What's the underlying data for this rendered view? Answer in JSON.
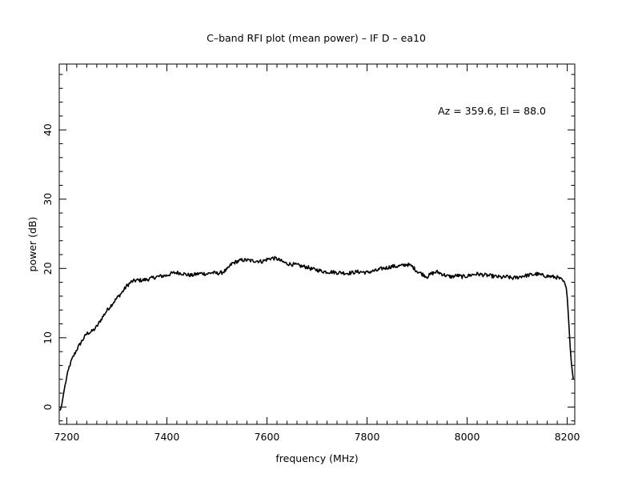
{
  "chart_data": {
    "type": "line",
    "title": "C–band RFI plot (mean power) – IF D – ea10",
    "xlabel": "frequency (MHz)",
    "ylabel": "power (dB)",
    "annotation": "Az = 359.6, El = 88.0",
    "xlim": [
      7185,
      8215
    ],
    "ylim": [
      -2.5,
      49.5
    ],
    "x_ticks": [
      7200,
      7400,
      7600,
      7800,
      8000,
      8200
    ],
    "y_ticks": [
      0,
      10,
      20,
      30,
      40
    ],
    "x_minor_step": 20,
    "y_minor_step": 2,
    "grid": false,
    "line_color": "#000000",
    "series": [
      {
        "x": [
          7187,
          7190,
          7195,
          7200,
          7205,
          7210,
          7220,
          7230,
          7240,
          7250,
          7255,
          7260,
          7270,
          7280,
          7290,
          7300,
          7310,
          7320,
          7330,
          7340,
          7350,
          7360,
          7370,
          7380,
          7390,
          7400,
          7410,
          7420,
          7430,
          7440,
          7450,
          7460,
          7470,
          7480,
          7490,
          7500,
          7510,
          7520,
          7530,
          7540,
          7550,
          7560,
          7570,
          7580,
          7590,
          7600,
          7610,
          7620,
          7630,
          7640,
          7650,
          7660,
          7670,
          7680,
          7690,
          7700,
          7710,
          7720,
          7730,
          7740,
          7750,
          7760,
          7770,
          7780,
          7790,
          7800,
          7810,
          7820,
          7830,
          7840,
          7850,
          7860,
          7870,
          7880,
          7890,
          7900,
          7910,
          7920,
          7930,
          7940,
          7950,
          7960,
          7970,
          7980,
          7990,
          8000,
          8010,
          8020,
          8030,
          8040,
          8050,
          8060,
          8070,
          8080,
          8090,
          8100,
          8110,
          8120,
          8130,
          8140,
          8150,
          8160,
          8170,
          8180,
          8190,
          8195,
          8198,
          8200,
          8202,
          8204,
          8206,
          8208,
          8210,
          8212
        ],
        "y": [
          -0.5,
          0.3,
          2.5,
          4.3,
          5.8,
          6.8,
          8.3,
          9.5,
          10.6,
          10.9,
          11.2,
          11.6,
          12.8,
          13.9,
          14.8,
          15.7,
          16.5,
          17.5,
          18.1,
          18.3,
          18.3,
          18.4,
          18.6,
          18.8,
          18.9,
          19.0,
          19.3,
          19.4,
          19.3,
          19.1,
          19.0,
          19.2,
          19.3,
          19.2,
          19.4,
          19.3,
          19.4,
          19.8,
          20.7,
          21.0,
          21.2,
          21.2,
          21.1,
          21.1,
          21.0,
          21.3,
          21.5,
          21.4,
          21.0,
          20.7,
          20.6,
          20.5,
          20.3,
          20.2,
          19.9,
          19.8,
          19.6,
          19.5,
          19.5,
          19.4,
          19.4,
          19.3,
          19.4,
          19.5,
          19.5,
          19.4,
          19.6,
          19.7,
          20.0,
          20.1,
          20.3,
          20.3,
          20.4,
          20.6,
          20.3,
          19.6,
          19.2,
          18.8,
          19.3,
          19.5,
          19.2,
          18.9,
          18.8,
          19.0,
          18.8,
          18.9,
          19.1,
          19.2,
          19.1,
          19.0,
          18.9,
          18.8,
          18.7,
          18.8,
          18.6,
          18.7,
          18.9,
          19.0,
          19.1,
          19.2,
          19.0,
          18.9,
          18.8,
          18.7,
          18.3,
          17.8,
          17.2,
          15.8,
          13.5,
          11.0,
          8.5,
          6.6,
          5.2,
          4.0
        ]
      }
    ]
  }
}
